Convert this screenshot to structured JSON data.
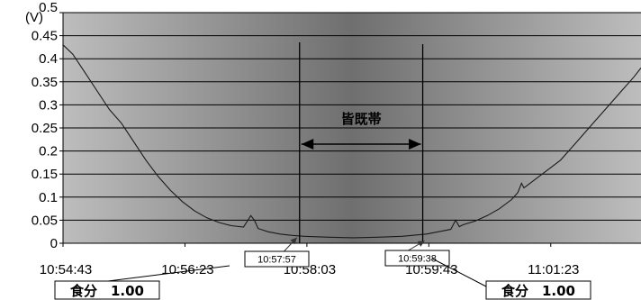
{
  "chart_data": {
    "type": "line",
    "y_unit": "(V)",
    "xlabel": "",
    "ylabel": "",
    "ylim": [
      0,
      0.5
    ],
    "y_ticks": [
      "0",
      "0.05",
      "0.1",
      "0.15",
      "0.2",
      "0.25",
      "0.3",
      "0.35",
      "0.4",
      "0.45",
      "0.5"
    ],
    "x_ticks": [
      "10:54:43",
      "10:56:23",
      "10:58:03",
      "10:59:43",
      "11:01:23"
    ],
    "xlim": [
      "10:54:43",
      "11:02:37"
    ],
    "grid": true,
    "totality_label": "皆既帯",
    "contact_times": [
      "10:57:57",
      "10:59:38"
    ],
    "magnitude_labels": [
      "食分　1.00",
      "食分　1.00"
    ],
    "series": [
      {
        "x": [
          "10:54:43",
          "10:54:51",
          "10:55:01",
          "10:55:11",
          "10:55:21",
          "10:55:31",
          "10:55:41",
          "10:55:51",
          "10:56:01",
          "10:56:11",
          "10:56:21",
          "10:56:31",
          "10:56:41",
          "10:56:51",
          "10:57:01",
          "10:57:11",
          "10:57:17",
          "10:57:20",
          "10:57:23",
          "10:57:31",
          "10:57:41",
          "10:57:51",
          "10:58:01",
          "10:58:21",
          "10:58:41",
          "10:59:01",
          "10:59:21",
          "10:59:41",
          "10:59:51",
          "11:00:01",
          "11:00:05",
          "11:00:08",
          "11:00:11",
          "11:00:21",
          "11:00:31",
          "11:00:41",
          "11:00:51",
          "11:00:56",
          "11:00:59",
          "11:01:01",
          "11:01:11",
          "11:01:21",
          "11:01:31",
          "11:01:41",
          "11:01:51",
          "11:02:01",
          "11:02:11",
          "11:02:21",
          "11:02:31",
          "11:02:37"
        ],
        "y": [
          0.43,
          0.41,
          0.37,
          0.33,
          0.29,
          0.26,
          0.22,
          0.18,
          0.145,
          0.115,
          0.09,
          0.07,
          0.055,
          0.045,
          0.038,
          0.035,
          0.06,
          0.05,
          0.032,
          0.025,
          0.02,
          0.017,
          0.015,
          0.013,
          0.012,
          0.013,
          0.015,
          0.02,
          0.025,
          0.03,
          0.05,
          0.036,
          0.04,
          0.048,
          0.06,
          0.075,
          0.095,
          0.11,
          0.13,
          0.12,
          0.14,
          0.16,
          0.18,
          0.21,
          0.24,
          0.27,
          0.3,
          0.33,
          0.36,
          0.38
        ]
      }
    ],
    "colors": {
      "plot_edge": "#bdbdbd",
      "plot_center": "#6f6f6f",
      "gridline": "#000000",
      "line": "#1a1a1a"
    }
  }
}
